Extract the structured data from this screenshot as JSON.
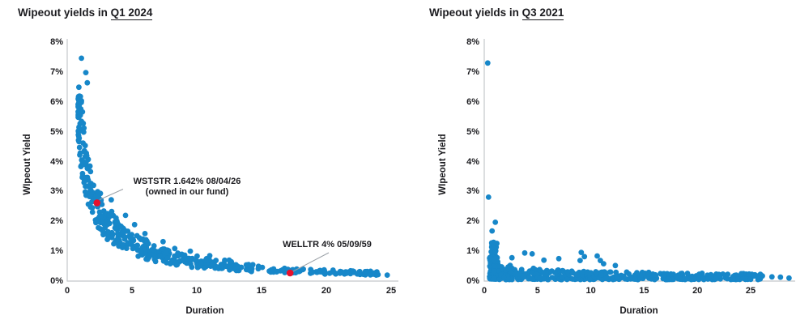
{
  "page": {
    "background": "#ffffff"
  },
  "chart_data": [
    {
      "type": "scatter",
      "title_prefix": "Wipeout yields in ",
      "title_period": "Q1 2024",
      "xlabel": "Duration",
      "ylabel": "WIpeout Yield",
      "xlim": [
        0,
        25.6
      ],
      "ylim": [
        0,
        8
      ],
      "xticks": [
        0,
        5,
        10,
        15,
        20,
        25
      ],
      "yticks": [
        "0%",
        "1%",
        "2%",
        "3%",
        "4%",
        "5%",
        "6%",
        "7%",
        "8%"
      ],
      "grid": false,
      "marker_color": "#1787c9",
      "highlight_color": "#e8112d",
      "axis_color": "#c4c7ca",
      "leader_color": "#9aa0a6",
      "cloud": [
        {
          "type": "curve",
          "n": 420,
          "seed": 42,
          "xMin": 0.85,
          "xMax": 24.2,
          "xPow": 2.15,
          "amp": 5.0,
          "decay": 0.95,
          "bandLo": 0.8,
          "bandHi": 1.32,
          "yCap": 6.22,
          "yFloor": 0.12
        },
        {
          "type": "curve",
          "n": 65,
          "seed": 77,
          "xMin": 2.2,
          "xMax": 14.5,
          "xPow": 1.7,
          "amp": 5.0,
          "decay": 0.95,
          "bandLo": 1.3,
          "bandHi": 1.55,
          "yCap": 3.0,
          "yFloor": 0.3
        }
      ],
      "outlier_points": [
        [
          1.1,
          7.46
        ],
        [
          1.44,
          6.98
        ],
        [
          1.55,
          6.64
        ],
        [
          0.9,
          6.49
        ],
        [
          1.02,
          6.18
        ],
        [
          3.4,
          2.72
        ],
        [
          4.5,
          2.2
        ],
        [
          5.2,
          1.89
        ],
        [
          6.0,
          1.59
        ],
        [
          7.4,
          1.32
        ],
        [
          6.7,
          1.18
        ],
        [
          8.3,
          1.09
        ],
        [
          9.5,
          1.0
        ],
        [
          11.0,
          0.85
        ],
        [
          12.5,
          0.7
        ],
        [
          14.0,
          0.55
        ],
        [
          20.5,
          0.32
        ],
        [
          21.0,
          0.28
        ],
        [
          21.6,
          0.3
        ],
        [
          22.6,
          0.22
        ],
        [
          23.4,
          0.21
        ],
        [
          23.9,
          0.22
        ],
        [
          24.7,
          0.2
        ]
      ],
      "highlight_points": [
        {
          "x": 2.3,
          "y": 2.62,
          "label_line1": "WSTSTR 1.642%  08/04/26",
          "label_line2": "(owned in our fund)"
        },
        {
          "x": 17.2,
          "y": 0.27,
          "label_line1": "WELLTR 4%  05/09/59",
          "label_line2": ""
        }
      ]
    },
    {
      "type": "scatter",
      "title_prefix": "Wipeout yields in ",
      "title_period": "Q3 2021",
      "xlabel": "Duration",
      "ylabel": "WIpeout Yield",
      "xlim": [
        0,
        29
      ],
      "ylim": [
        0,
        8
      ],
      "xticks": [
        0,
        5,
        10,
        15,
        20,
        25
      ],
      "yticks": [
        "0%",
        "1%",
        "2%",
        "3%",
        "4%",
        "5%",
        "6%",
        "7%",
        "8%"
      ],
      "grid": false,
      "marker_color": "#1787c9",
      "highlight_color": "#e8112d",
      "axis_color": "#c4c7ca",
      "leader_color": "#9aa0a6",
      "cloud": [
        {
          "type": "spike",
          "n": 130,
          "seed": 5,
          "xMin": 0.5,
          "xMax": 1.3,
          "yMin": 0.07,
          "yMax": 1.32,
          "yPow": 2.2
        },
        {
          "type": "band",
          "n": 430,
          "seed": 9,
          "xMin": 0.9,
          "xMax": 26.0,
          "xPow": 1.4,
          "topAmp": 0.72,
          "topDecay": 0.33,
          "yMin": 0.05,
          "vPow": 1.5
        }
      ],
      "outlier_points": [
        [
          0.33,
          7.3
        ],
        [
          0.4,
          2.81
        ],
        [
          1.04,
          1.97
        ],
        [
          0.74,
          1.68
        ],
        [
          1.15,
          1.25
        ],
        [
          2.6,
          0.78
        ],
        [
          3.8,
          0.94
        ],
        [
          4.5,
          0.91
        ],
        [
          5.6,
          0.7
        ],
        [
          7.0,
          0.75
        ],
        [
          9.0,
          0.69
        ],
        [
          9.1,
          0.96
        ],
        [
          9.4,
          0.82
        ],
        [
          10.6,
          0.84
        ],
        [
          10.9,
          0.69
        ],
        [
          11.2,
          0.58
        ],
        [
          12.3,
          0.52
        ],
        [
          26.1,
          0.17
        ],
        [
          27.0,
          0.14
        ],
        [
          27.8,
          0.13
        ],
        [
          28.6,
          0.1
        ]
      ],
      "highlight_points": []
    }
  ]
}
